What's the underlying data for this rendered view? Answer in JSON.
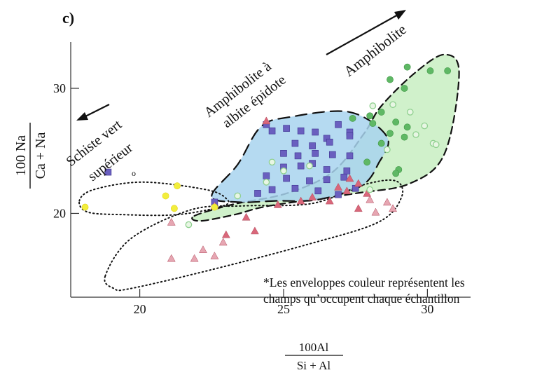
{
  "panel_label": "c)",
  "note_lines": [
    "*Les enveloppes couleur représentent les",
    "champs qu’occupent chaque échantillon"
  ],
  "field_labels": {
    "amphibolite": "Amphibolite",
    "albite_line1": "Amphibolite à",
    "albite_line2": "albite épidote",
    "schiste_line1": "Schiste vert",
    "schiste_line2": "supérieur"
  },
  "stray_marker": "o",
  "colors": {
    "blue_field": "#a8d4ef",
    "green_field": "#c8eec2",
    "blue_square": "#6a5fbf",
    "blue_square_dark": "#4a3f9c",
    "red_triangle": "#d9677a",
    "pink_triangle": "#e6a6b2",
    "green_circle": "#5fb865",
    "yellow_dot": "#f2ee3c"
  },
  "chart_data": {
    "type": "scatter",
    "title": "",
    "xlabel": {
      "numerator": "100Al",
      "denominator": "Si + Al"
    },
    "ylabel": {
      "numerator": "100 Na",
      "denominator": "Ca + Na"
    },
    "xlim": [
      17.6,
      31.5
    ],
    "ylim": [
      13.3,
      33.7
    ],
    "x_ticks": [
      {
        "value": 20,
        "label": "20"
      },
      {
        "value": 25,
        "label": "25"
      },
      {
        "value": 30,
        "label": "30"
      }
    ],
    "y_ticks": [
      {
        "value": 20,
        "label": "20"
      },
      {
        "value": 30,
        "label": "30"
      }
    ],
    "grid": false,
    "legend": "none",
    "series": [
      {
        "marker": "square",
        "color": "#6a5fbf",
        "points": [
          [
            18.9,
            23.3
          ],
          [
            24.4,
            27.1
          ],
          [
            24.6,
            26.6
          ],
          [
            25.1,
            26.8
          ],
          [
            25.6,
            26.6
          ],
          [
            26.1,
            26.5
          ],
          [
            26.5,
            26.0
          ],
          [
            26.9,
            27.1
          ],
          [
            27.3,
            26.5
          ],
          [
            25.4,
            25.6
          ],
          [
            26.0,
            25.4
          ],
          [
            26.6,
            25.7
          ],
          [
            25.0,
            24.8
          ],
          [
            25.5,
            24.6
          ],
          [
            26.1,
            24.8
          ],
          [
            26.7,
            24.7
          ],
          [
            27.3,
            24.6
          ],
          [
            25.0,
            23.7
          ],
          [
            25.6,
            23.8
          ],
          [
            26.0,
            24.0
          ],
          [
            26.5,
            23.5
          ],
          [
            27.2,
            23.4
          ],
          [
            24.4,
            23.0
          ],
          [
            25.1,
            22.8
          ],
          [
            25.9,
            22.6
          ],
          [
            26.5,
            22.7
          ],
          [
            27.1,
            22.9
          ],
          [
            24.6,
            21.9
          ],
          [
            25.4,
            22.0
          ],
          [
            26.2,
            21.8
          ],
          [
            26.9,
            21.5
          ],
          [
            27.5,
            22.0
          ],
          [
            22.6,
            20.9
          ],
          [
            24.1,
            21.6
          ],
          [
            27.3,
            26.2
          ]
        ]
      },
      {
        "marker": "triangle",
        "color": "#d9677a",
        "points": [
          [
            24.4,
            27.4
          ],
          [
            26.0,
            21.3
          ],
          [
            26.6,
            21.0
          ],
          [
            26.9,
            22.1
          ],
          [
            27.3,
            22.8
          ],
          [
            27.6,
            22.4
          ],
          [
            27.9,
            21.6
          ],
          [
            25.6,
            21.0
          ],
          [
            24.8,
            20.7
          ],
          [
            27.6,
            20.4
          ],
          [
            27.2,
            21.8
          ],
          [
            23.7,
            19.7
          ],
          [
            24.0,
            18.6
          ],
          [
            23.0,
            18.3
          ]
        ]
      },
      {
        "marker": "triangle",
        "color": "#e6a6b2",
        "points": [
          [
            21.1,
            19.3
          ],
          [
            21.9,
            16.4
          ],
          [
            22.2,
            17.1
          ],
          [
            22.6,
            16.6
          ],
          [
            22.9,
            17.7
          ],
          [
            21.1,
            16.4
          ],
          [
            22.6,
            20.6
          ],
          [
            28.6,
            20.9
          ],
          [
            28.2,
            20.1
          ],
          [
            28.8,
            20.4
          ],
          [
            28.0,
            21.1
          ]
        ]
      },
      {
        "marker": "circle",
        "color": "#5fb865",
        "points": [
          [
            28.7,
            30.7
          ],
          [
            29.3,
            31.7
          ],
          [
            30.1,
            31.4
          ],
          [
            30.7,
            31.4
          ],
          [
            29.2,
            30.0
          ],
          [
            27.4,
            27.6
          ],
          [
            28.0,
            27.8
          ],
          [
            28.4,
            28.1
          ],
          [
            28.1,
            27.2
          ],
          [
            28.9,
            27.3
          ],
          [
            29.3,
            26.9
          ],
          [
            28.7,
            26.4
          ],
          [
            29.2,
            26.1
          ],
          [
            28.4,
            25.6
          ],
          [
            29.0,
            23.5
          ],
          [
            28.9,
            23.2
          ],
          [
            27.9,
            24.1
          ]
        ]
      },
      {
        "marker": "circle-open",
        "color": "#8fd08f",
        "points": [
          [
            28.1,
            28.6
          ],
          [
            28.8,
            28.7
          ],
          [
            29.4,
            28.1
          ],
          [
            29.9,
            27.0
          ],
          [
            29.6,
            26.3
          ],
          [
            30.2,
            25.6
          ],
          [
            30.3,
            25.5
          ],
          [
            28.6,
            25.1
          ],
          [
            25.9,
            23.8
          ],
          [
            24.6,
            24.1
          ],
          [
            25.0,
            23.4
          ],
          [
            24.4,
            22.5
          ],
          [
            23.4,
            21.4
          ],
          [
            21.7,
            19.1
          ],
          [
            28.0,
            21.9
          ]
        ]
      },
      {
        "marker": "circle",
        "color": "#f2ee3c",
        "points": [
          [
            18.1,
            20.5
          ],
          [
            21.3,
            22.2
          ],
          [
            21.2,
            20.4
          ],
          [
            20.9,
            21.4
          ],
          [
            22.6,
            20.5
          ]
        ]
      }
    ],
    "envelopes": [
      {
        "style": "dashed",
        "fill": "#c8eec2",
        "points": [
          [
            21.9,
            19.8
          ],
          [
            23.2,
            20.7
          ],
          [
            25.1,
            21.6
          ],
          [
            26.7,
            23.3
          ],
          [
            27.8,
            26.4
          ],
          [
            28.4,
            28.6
          ],
          [
            29.6,
            31.3
          ],
          [
            30.6,
            32.7
          ],
          [
            31.1,
            31.2
          ],
          [
            30.6,
            24.8
          ],
          [
            29.4,
            22.4
          ],
          [
            27.5,
            21.6
          ],
          [
            24.5,
            20.6
          ],
          [
            23.3,
            19.9
          ],
          [
            22.1,
            19.4
          ]
        ]
      },
      {
        "style": "long-dashed",
        "fill": "#a8d4ef",
        "points": [
          [
            22.5,
            21.4
          ],
          [
            23.4,
            23.9
          ],
          [
            24.2,
            26.9
          ],
          [
            25.2,
            27.7
          ],
          [
            27.3,
            28.1
          ],
          [
            28.6,
            26.1
          ],
          [
            28.3,
            24.0
          ],
          [
            27.7,
            22.2
          ],
          [
            26.2,
            21.1
          ],
          [
            24.7,
            21.0
          ],
          [
            23.4,
            20.9
          ]
        ]
      },
      {
        "style": "dotted",
        "fill": "none",
        "points": [
          [
            17.9,
            21.0
          ],
          [
            18.4,
            21.9
          ],
          [
            20.1,
            22.5
          ],
          [
            22.3,
            21.9
          ],
          [
            23.0,
            21.2
          ],
          [
            22.9,
            20.6
          ],
          [
            21.3,
            19.9
          ],
          [
            19.4,
            19.9
          ],
          [
            18.2,
            20.1
          ]
        ]
      },
      {
        "style": "dotted",
        "fill": "none",
        "points": [
          [
            18.8,
            15.0
          ],
          [
            19.7,
            18.0
          ],
          [
            21.8,
            20.3
          ],
          [
            23.6,
            20.6
          ],
          [
            26.0,
            20.8
          ],
          [
            27.8,
            22.3
          ],
          [
            28.9,
            22.6
          ],
          [
            29.1,
            21.3
          ],
          [
            28.3,
            19.3
          ],
          [
            25.8,
            17.5
          ],
          [
            22.5,
            15.5
          ],
          [
            19.7,
            14.0
          ],
          [
            19.1,
            14.0
          ]
        ]
      }
    ]
  }
}
